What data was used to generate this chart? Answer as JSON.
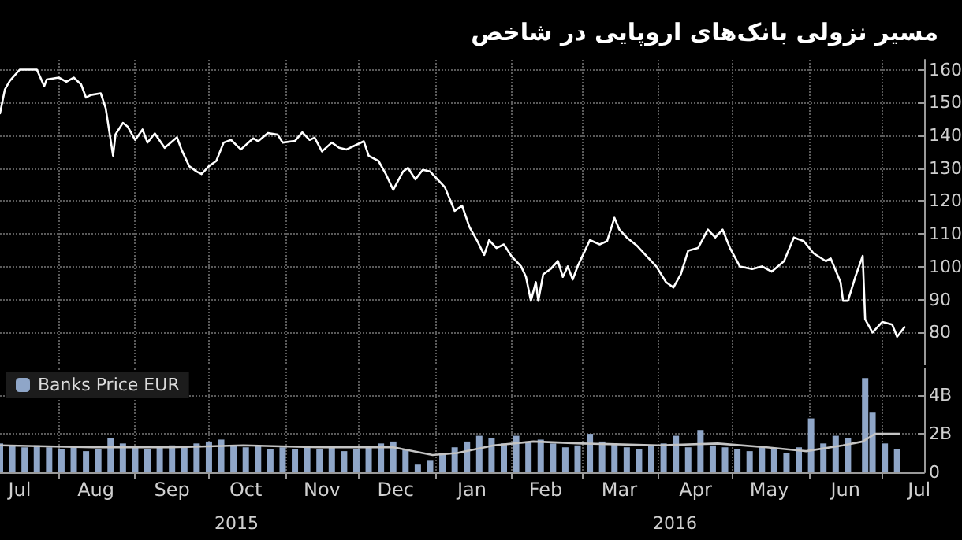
{
  "chart_data": [
    {
      "type": "line",
      "title": "مسیر نزولی بانک‌های اروپایی در شاخص",
      "color": "#ffffff",
      "x": [
        "2015-07-08",
        "2015-07-10",
        "2015-07-12",
        "2015-07-16",
        "2015-07-19",
        "2015-07-23",
        "2015-07-26",
        "2015-07-27",
        "2015-08-01",
        "2015-08-04",
        "2015-08-07",
        "2015-08-10",
        "2015-08-12",
        "2015-08-14",
        "2015-08-18",
        "2015-08-20",
        "2015-08-23",
        "2015-08-24",
        "2015-08-27",
        "2015-08-29",
        "2015-09-01",
        "2015-09-04",
        "2015-09-06",
        "2015-09-09",
        "2015-09-13",
        "2015-09-18",
        "2015-09-20",
        "2015-09-23",
        "2015-09-26",
        "2015-09-28",
        "2015-10-01",
        "2015-10-04",
        "2015-10-07",
        "2015-10-10",
        "2015-10-14",
        "2015-10-19",
        "2015-10-21",
        "2015-10-25",
        "2015-10-29",
        "2015-10-31",
        "2015-11-05",
        "2015-11-08",
        "2015-11-11",
        "2015-11-13",
        "2015-11-16",
        "2015-11-20",
        "2015-11-23",
        "2015-11-26",
        "2015-12-03",
        "2015-12-05",
        "2015-12-09",
        "2015-12-12",
        "2015-12-15",
        "2015-12-19",
        "2015-12-21",
        "2015-12-24",
        "2015-12-27",
        "2015-12-30",
        "2016-01-02",
        "2016-01-05",
        "2016-01-09",
        "2016-01-12",
        "2016-01-15",
        "2016-01-18",
        "2016-01-21",
        "2016-01-23",
        "2016-01-26",
        "2016-01-29",
        "2016-02-01",
        "2016-02-05",
        "2016-02-07",
        "2016-02-09",
        "2016-02-11",
        "2016-02-12",
        "2016-02-14",
        "2016-02-17",
        "2016-02-20",
        "2016-02-22",
        "2016-02-24",
        "2016-02-26",
        "2016-02-28",
        "2016-03-02",
        "2016-03-04",
        "2016-03-08",
        "2016-03-11",
        "2016-03-14",
        "2016-03-16",
        "2016-03-19",
        "2016-03-23",
        "2016-03-27",
        "2016-03-31",
        "2016-04-04",
        "2016-04-07",
        "2016-04-10",
        "2016-04-13",
        "2016-04-17",
        "2016-04-21",
        "2016-04-24",
        "2016-04-27",
        "2016-04-30",
        "2016-05-04",
        "2016-05-09",
        "2016-05-13",
        "2016-05-17",
        "2016-05-22",
        "2016-05-26",
        "2016-05-30",
        "2016-06-03",
        "2016-06-08",
        "2016-06-10",
        "2016-06-14",
        "2016-06-15",
        "2016-06-17",
        "2016-06-20",
        "2016-06-23",
        "2016-06-24",
        "2016-06-27",
        "2016-07-01",
        "2016-07-05",
        "2016-07-07",
        "2016-07-10"
      ],
      "values": [
        146.7,
        154,
        156.6,
        160,
        160,
        160,
        155,
        157,
        157.6,
        156.3,
        157.6,
        155.5,
        151.5,
        152.3,
        152.8,
        148.3,
        133.8,
        140.3,
        143.8,
        142.6,
        138.6,
        141.8,
        137.8,
        140.6,
        136.2,
        139.4,
        135.4,
        130.6,
        129,
        128.2,
        130.6,
        132.2,
        137.8,
        138.6,
        135.7,
        139.1,
        138.2,
        140.7,
        140.2,
        137.8,
        138.3,
        140.9,
        138.6,
        139.3,
        135.1,
        137.8,
        136.2,
        135.7,
        138.2,
        133.8,
        132.2,
        128.2,
        123.4,
        129,
        130.1,
        126.6,
        129.5,
        129,
        126.6,
        124.2,
        117,
        118.6,
        112.1,
        108.1,
        103.6,
        108.1,
        105.7,
        106.8,
        103.3,
        100.1,
        96.9,
        89.6,
        95.3,
        89.6,
        97.7,
        99.3,
        101.7,
        96.9,
        100.1,
        96.1,
        100.1,
        104.9,
        108.1,
        106.8,
        107.8,
        114.9,
        111.3,
        108.9,
        106.5,
        103.3,
        100.1,
        95.3,
        93.7,
        97.7,
        104.9,
        105.7,
        111.3,
        108.9,
        111.3,
        105.7,
        100.1,
        99.3,
        100.1,
        98.5,
        101.7,
        108.9,
        107.8,
        104.1,
        101.7,
        102.5,
        95.3,
        89.6,
        89.6,
        96.9,
        103.3,
        84,
        80,
        83.2,
        82.4,
        78.7,
        81.6
      ],
      "xlim": [
        "2015-07-08",
        "2016-07-18"
      ],
      "xticks": [
        {
          "value": "2015-08-01",
          "label": null
        },
        {
          "value": "2015-09-01",
          "label": null
        },
        {
          "value": "2015-10-01",
          "label": null
        },
        {
          "value": "2015-11-01",
          "label": null
        },
        {
          "value": "2015-12-01",
          "label": null
        },
        {
          "value": "2016-01-01",
          "label": null
        },
        {
          "value": "2016-02-01",
          "label": null
        },
        {
          "value": "2016-03-01",
          "label": null
        },
        {
          "value": "2016-04-01",
          "label": null
        },
        {
          "value": "2016-05-01",
          "label": null
        },
        {
          "value": "2016-06-01",
          "label": null
        },
        {
          "value": "2016-07-01",
          "label": null
        }
      ],
      "ylim": [
        70,
        163
      ],
      "yticks": [
        80,
        90,
        100,
        110,
        120,
        130,
        140,
        150,
        160
      ],
      "grid": true,
      "tick_labels": "y"
    },
    {
      "type": "bar",
      "legend": "top left",
      "grid": true,
      "series": [
        {
          "name": "Banks Price EUR",
          "color": "#8fa6c8",
          "x": [
            "2015-07-08",
            "2015-07-13",
            "2015-07-18",
            "2015-07-23",
            "2015-07-28",
            "2015-08-02",
            "2015-08-07",
            "2015-08-12",
            "2015-08-17",
            "2015-08-22",
            "2015-08-27",
            "2015-09-01",
            "2015-09-06",
            "2015-09-11",
            "2015-09-16",
            "2015-09-21",
            "2015-09-26",
            "2015-10-01",
            "2015-10-06",
            "2015-10-11",
            "2015-10-16",
            "2015-10-21",
            "2015-10-26",
            "2015-10-31",
            "2015-11-05",
            "2015-11-10",
            "2015-11-15",
            "2015-11-20",
            "2015-11-25",
            "2015-11-30",
            "2015-12-05",
            "2015-12-10",
            "2015-12-15",
            "2015-12-20",
            "2015-12-25",
            "2015-12-30",
            "2016-01-04",
            "2016-01-09",
            "2016-01-14",
            "2016-01-19",
            "2016-01-24",
            "2016-01-29",
            "2016-02-03",
            "2016-02-08",
            "2016-02-13",
            "2016-02-18",
            "2016-02-23",
            "2016-02-28",
            "2016-03-04",
            "2016-03-09",
            "2016-03-14",
            "2016-03-19",
            "2016-03-24",
            "2016-03-29",
            "2016-04-03",
            "2016-04-08",
            "2016-04-13",
            "2016-04-18",
            "2016-04-23",
            "2016-04-28",
            "2016-05-03",
            "2016-05-08",
            "2016-05-13",
            "2016-05-18",
            "2016-05-23",
            "2016-05-28",
            "2016-06-02",
            "2016-06-07",
            "2016-06-12",
            "2016-06-17",
            "2016-06-24",
            "2016-06-27",
            "2016-07-02",
            "2016-07-07"
          ],
          "values": [
            1.5,
            1.4,
            1.3,
            1.4,
            1.3,
            1.2,
            1.3,
            1.1,
            1.2,
            1.8,
            1.5,
            1.3,
            1.2,
            1.3,
            1.4,
            1.3,
            1.5,
            1.6,
            1.7,
            1.4,
            1.3,
            1.4,
            1.2,
            1.3,
            1.2,
            1.3,
            1.2,
            1.3,
            1.1,
            1.2,
            1.3,
            1.5,
            1.6,
            1.2,
            0.4,
            0.6,
            1.0,
            1.3,
            1.6,
            1.9,
            1.8,
            1.5,
            1.9,
            1.6,
            1.7,
            1.5,
            1.3,
            1.4,
            2.0,
            1.6,
            1.5,
            1.3,
            1.2,
            1.4,
            1.5,
            1.9,
            1.3,
            2.2,
            1.4,
            1.3,
            1.2,
            1.1,
            1.3,
            1.2,
            1.0,
            1.3,
            2.8,
            1.5,
            1.9,
            1.8,
            4.9,
            3.1,
            1.5,
            1.2
          ]
        },
        {
          "type": "line",
          "color": "#c4c4c4",
          "x": [
            "2015-07-08",
            "2015-08-15",
            "2015-09-15",
            "2015-10-15",
            "2015-11-15",
            "2015-12-15",
            "2015-12-31",
            "2016-01-10",
            "2016-01-25",
            "2016-02-10",
            "2016-03-01",
            "2016-04-01",
            "2016-04-25",
            "2016-05-15",
            "2016-05-31",
            "2016-06-15",
            "2016-06-23",
            "2016-06-28",
            "2016-07-08"
          ],
          "values": [
            1.4,
            1.3,
            1.3,
            1.4,
            1.3,
            1.3,
            0.9,
            1.0,
            1.4,
            1.6,
            1.5,
            1.4,
            1.5,
            1.3,
            1.1,
            1.4,
            1.6,
            2.0,
            2.0
          ]
        }
      ],
      "annotations": [
        "2015",
        "2016"
      ],
      "xlim": [
        "2015-07-08",
        "2016-07-18"
      ],
      "xticks": [
        {
          "value": "2015-07-16",
          "label": "Jul"
        },
        {
          "value": "2015-08-01",
          "label": null
        },
        {
          "value": "2015-08-16",
          "label": "Aug"
        },
        {
          "value": "2015-09-01",
          "label": null
        },
        {
          "value": "2015-09-16",
          "label": "Sep"
        },
        {
          "value": "2015-10-01",
          "label": null
        },
        {
          "value": "2015-10-16",
          "label": "Oct"
        },
        {
          "value": "2015-11-01",
          "label": null
        },
        {
          "value": "2015-11-16",
          "label": "Nov"
        },
        {
          "value": "2015-12-01",
          "label": null
        },
        {
          "value": "2015-12-16",
          "label": "Dec"
        },
        {
          "value": "2016-01-01",
          "label": null
        },
        {
          "value": "2016-01-16",
          "label": "Jan"
        },
        {
          "value": "2016-02-01",
          "label": null
        },
        {
          "value": "2016-02-15",
          "label": "Feb"
        },
        {
          "value": "2016-03-01",
          "label": null
        },
        {
          "value": "2016-03-16",
          "label": "Mar"
        },
        {
          "value": "2016-04-01",
          "label": null
        },
        {
          "value": "2016-04-16",
          "label": "Apr"
        },
        {
          "value": "2016-05-01",
          "label": null
        },
        {
          "value": "2016-05-16",
          "label": "May"
        },
        {
          "value": "2016-06-01",
          "label": null
        },
        {
          "value": "2016-06-16",
          "label": "Jun"
        },
        {
          "value": "2016-07-01",
          "label": null
        },
        {
          "value": "2016-07-16",
          "label": "Jul"
        }
      ],
      "ylim": [
        0,
        5.4
      ],
      "yticks": [
        {
          "value": 0,
          "label": "0"
        },
        {
          "value": 2,
          "label": "2B"
        },
        {
          "value": 4,
          "label": "4B"
        }
      ]
    }
  ]
}
